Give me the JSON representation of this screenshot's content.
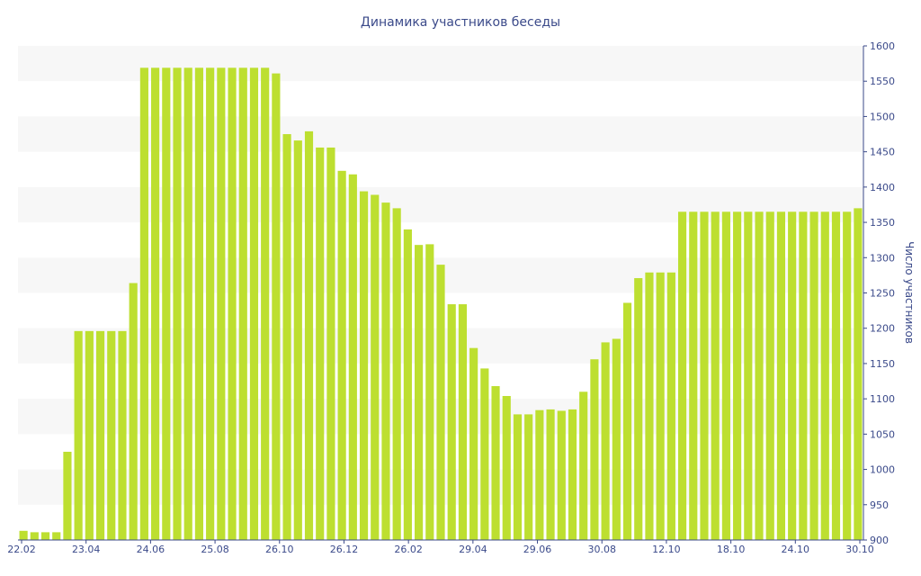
{
  "chart_data": {
    "type": "bar",
    "title": "Динамика участников беседы",
    "ylabel": "Число участников",
    "ylim": [
      900,
      1600
    ],
    "yticks": [
      900,
      950,
      1000,
      1050,
      1100,
      1150,
      1200,
      1250,
      1300,
      1350,
      1400,
      1450,
      1500,
      1550,
      1600
    ],
    "xtick_labels": [
      "22.02",
      "23.04",
      "24.06",
      "25.08",
      "26.10",
      "26.12",
      "26.02",
      "29.04",
      "29.06",
      "30.08",
      "12.10",
      "18.10",
      "24.10",
      "30.10"
    ],
    "y_axis_position": "right",
    "bar_color": "#bddf30",
    "values": [
      913,
      911,
      911,
      911,
      1025,
      1196,
      1196,
      1196,
      1196,
      1196,
      1264,
      1569,
      1569,
      1569,
      1569,
      1569,
      1569,
      1569,
      1569,
      1569,
      1569,
      1569,
      1569,
      1561,
      1475,
      1466,
      1479,
      1456,
      1456,
      1423,
      1418,
      1394,
      1389,
      1378,
      1370,
      1340,
      1318,
      1319,
      1290,
      1234,
      1234,
      1172,
      1143,
      1118,
      1104,
      1078,
      1078,
      1084,
      1085,
      1083,
      1085,
      1110,
      1156,
      1180,
      1185,
      1236,
      1271,
      1279,
      1279,
      1279,
      1365,
      1365,
      1365,
      1365,
      1365,
      1365,
      1365,
      1365,
      1365,
      1365,
      1365,
      1365,
      1365,
      1365,
      1365,
      1365,
      1370
    ]
  }
}
